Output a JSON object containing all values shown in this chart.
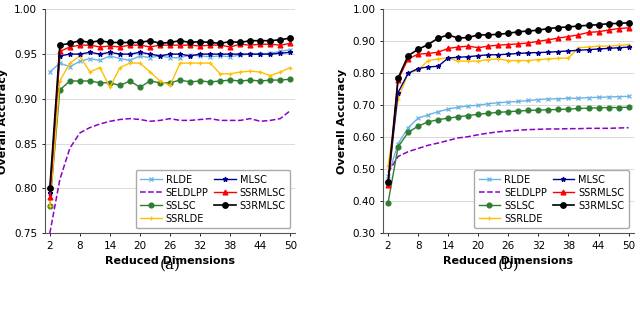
{
  "x": [
    2,
    4,
    6,
    8,
    10,
    12,
    14,
    16,
    18,
    20,
    22,
    24,
    26,
    28,
    30,
    32,
    34,
    36,
    38,
    40,
    42,
    44,
    46,
    48,
    50
  ],
  "a_RLDE": [
    0.93,
    0.94,
    0.936,
    0.942,
    0.945,
    0.943,
    0.948,
    0.945,
    0.943,
    0.948,
    0.946,
    0.948,
    0.946,
    0.946,
    0.949,
    0.948,
    0.947,
    0.948,
    0.947,
    0.949,
    0.95,
    0.95,
    0.951,
    0.953,
    0.955
  ],
  "a_SELDLPP": [
    0.75,
    0.81,
    0.845,
    0.862,
    0.868,
    0.872,
    0.875,
    0.877,
    0.878,
    0.877,
    0.875,
    0.876,
    0.878,
    0.876,
    0.876,
    0.877,
    0.878,
    0.876,
    0.876,
    0.876,
    0.878,
    0.875,
    0.876,
    0.878,
    0.887
  ],
  "a_SSLSC": [
    0.78,
    0.91,
    0.92,
    0.92,
    0.92,
    0.918,
    0.918,
    0.915,
    0.92,
    0.913,
    0.92,
    0.918,
    0.918,
    0.921,
    0.919,
    0.92,
    0.919,
    0.92,
    0.921,
    0.92,
    0.921,
    0.92,
    0.921,
    0.921,
    0.922
  ],
  "a_SSRLDE": [
    0.78,
    0.92,
    0.94,
    0.948,
    0.93,
    0.935,
    0.913,
    0.935,
    0.94,
    0.94,
    0.93,
    0.92,
    0.915,
    0.94,
    0.94,
    0.94,
    0.94,
    0.928,
    0.928,
    0.93,
    0.931,
    0.93,
    0.926,
    0.93,
    0.935
  ],
  "a_MLSC": [
    0.795,
    0.948,
    0.95,
    0.95,
    0.952,
    0.95,
    0.952,
    0.95,
    0.95,
    0.952,
    0.95,
    0.948,
    0.95,
    0.95,
    0.948,
    0.95,
    0.95,
    0.95,
    0.95,
    0.95,
    0.95,
    0.95,
    0.95,
    0.951,
    0.952
  ],
  "a_SSRMLSC": [
    0.79,
    0.953,
    0.958,
    0.96,
    0.96,
    0.958,
    0.959,
    0.958,
    0.96,
    0.96,
    0.958,
    0.96,
    0.96,
    0.96,
    0.96,
    0.959,
    0.96,
    0.96,
    0.958,
    0.961,
    0.96,
    0.961,
    0.961,
    0.96,
    0.962
  ],
  "a_S3RMLSC": [
    0.8,
    0.96,
    0.962,
    0.965,
    0.963,
    0.965,
    0.963,
    0.963,
    0.963,
    0.963,
    0.965,
    0.962,
    0.963,
    0.965,
    0.963,
    0.964,
    0.963,
    0.962,
    0.964,
    0.963,
    0.965,
    0.965,
    0.965,
    0.966,
    0.968
  ],
  "b_RLDE": [
    0.48,
    0.58,
    0.63,
    0.66,
    0.67,
    0.68,
    0.688,
    0.694,
    0.698,
    0.7,
    0.705,
    0.708,
    0.71,
    0.712,
    0.715,
    0.718,
    0.72,
    0.72,
    0.722,
    0.722,
    0.724,
    0.725,
    0.726,
    0.727,
    0.728
  ],
  "b_SELDLPP": [
    0.49,
    0.54,
    0.555,
    0.565,
    0.575,
    0.582,
    0.59,
    0.598,
    0.602,
    0.608,
    0.613,
    0.617,
    0.62,
    0.622,
    0.624,
    0.625,
    0.626,
    0.626,
    0.627,
    0.627,
    0.628,
    0.628,
    0.628,
    0.629,
    0.63
  ],
  "b_SSLSC": [
    0.395,
    0.57,
    0.615,
    0.635,
    0.648,
    0.655,
    0.66,
    0.664,
    0.668,
    0.672,
    0.675,
    0.678,
    0.68,
    0.682,
    0.684,
    0.685,
    0.686,
    0.687,
    0.688,
    0.69,
    0.691,
    0.692,
    0.693,
    0.693,
    0.694
  ],
  "b_SSRLDE": [
    0.51,
    0.72,
    0.8,
    0.81,
    0.84,
    0.845,
    0.848,
    0.838,
    0.838,
    0.838,
    0.843,
    0.845,
    0.84,
    0.84,
    0.84,
    0.843,
    0.845,
    0.847,
    0.848,
    0.88,
    0.882,
    0.885,
    0.885,
    0.887,
    0.89
  ],
  "b_MLSC": [
    0.455,
    0.74,
    0.8,
    0.815,
    0.82,
    0.822,
    0.848,
    0.85,
    0.852,
    0.855,
    0.858,
    0.858,
    0.86,
    0.862,
    0.864,
    0.865,
    0.866,
    0.868,
    0.87,
    0.872,
    0.874,
    0.876,
    0.878,
    0.88,
    0.882
  ],
  "b_SSRMLSC": [
    0.45,
    0.78,
    0.845,
    0.86,
    0.862,
    0.866,
    0.878,
    0.882,
    0.885,
    0.88,
    0.885,
    0.888,
    0.89,
    0.892,
    0.895,
    0.9,
    0.905,
    0.91,
    0.915,
    0.92,
    0.928,
    0.93,
    0.935,
    0.94,
    0.942
  ],
  "b_S3RMLSC": [
    0.46,
    0.785,
    0.855,
    0.875,
    0.89,
    0.91,
    0.92,
    0.91,
    0.912,
    0.92,
    0.92,
    0.922,
    0.925,
    0.93,
    0.932,
    0.935,
    0.94,
    0.943,
    0.945,
    0.948,
    0.95,
    0.952,
    0.955,
    0.956,
    0.958
  ],
  "ylim_a": [
    0.75,
    1.0
  ],
  "ylim_b": [
    0.3,
    1.0
  ],
  "yticks_a": [
    0.75,
    0.8,
    0.85,
    0.9,
    0.95,
    1.0
  ],
  "yticks_b": [
    0.3,
    0.4,
    0.5,
    0.6,
    0.7,
    0.8,
    0.9,
    1.0
  ],
  "xticks": [
    2,
    8,
    14,
    20,
    26,
    32,
    38,
    44,
    50
  ],
  "colors": {
    "RLDE": "#6CB4E4",
    "SELDLPP": "#8B00C9",
    "SSLSC": "#2E7D32",
    "SSRLDE": "#FFC000",
    "MLSC": "#00008B",
    "SSRMLSC": "#FF0000",
    "S3RMLSC": "#000000"
  },
  "markers": {
    "RLDE": "x",
    "SELDLPP": "None",
    "SSLSC": "o",
    "SSRLDE": "+",
    "MLSC": "*",
    "SSRMLSC": "^",
    "S3RMLSC": "o"
  },
  "linestyles": {
    "RLDE": "-",
    "SELDLPP": "--",
    "SSLSC": "-",
    "SSRLDE": "-",
    "MLSC": "-",
    "SSRMLSC": "-",
    "S3RMLSC": "-"
  },
  "series_order": [
    "RLDE",
    "SELDLPP",
    "SSLSC",
    "SSRLDE",
    "MLSC",
    "SSRMLSC",
    "S3RMLSC"
  ],
  "legend_col1": [
    "RLDE",
    "SSLSC",
    "MLSC",
    "S3RMLSC"
  ],
  "legend_col2": [
    "SELDLPP",
    "SSRLDE",
    "SSRMLSC"
  ],
  "xlabel": "Reduced Dimensions",
  "ylabel": "Overall Accuracy",
  "label_a": "(a)",
  "label_b": "(b)",
  "panel_label_fontsize": 11,
  "axis_fontsize": 8,
  "tick_fontsize": 7.5,
  "legend_fontsize": 7,
  "background_color": "#ffffff",
  "grid_color": "#cccccc",
  "grid_linewidth": 0.5
}
